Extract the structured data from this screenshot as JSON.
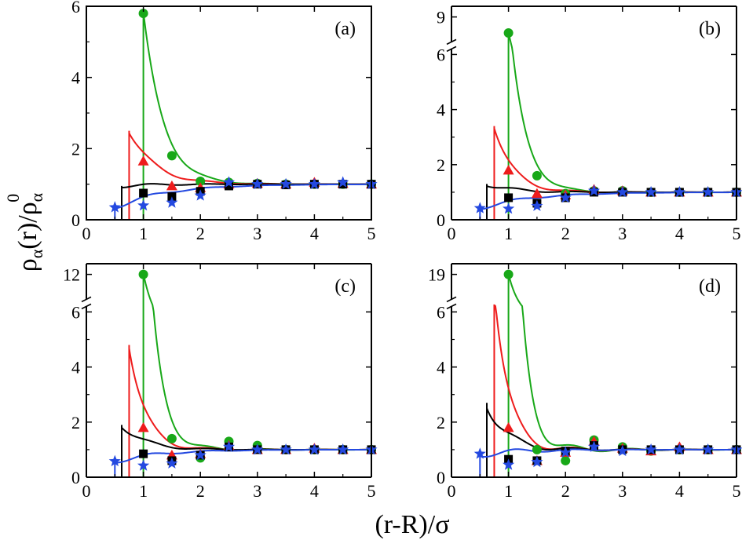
{
  "figure": {
    "ylabel": "ρα(r)/ρα0",
    "ylabel_main": "ρ",
    "ylabel_sub1": "α",
    "ylabel_mid": "(r)/ρ",
    "ylabel_sub2": "α",
    "ylabel_sup": "0",
    "xlabel": "(r-R)/σ"
  },
  "colors": {
    "black": "#000000",
    "red": "#ee1c1c",
    "green": "#18a818",
    "blue": "#2449e0"
  },
  "chart_data": [
    {
      "type": "line",
      "panel_label": "(a)",
      "xlim": [
        0,
        5
      ],
      "x_ticks": [
        "0",
        "1",
        "2",
        "3",
        "4",
        "5"
      ],
      "ylim": [
        0,
        6
      ],
      "y_ticks": [
        "0",
        "2",
        "4",
        "6"
      ],
      "axis_break": null,
      "series": [
        {
          "color": "green",
          "marker": "circle",
          "contact": 1.0,
          "peak": 5.8,
          "decay": 0.35,
          "osc_amp": 0.07,
          "x": [
            1.0,
            1.5,
            2.0,
            2.5,
            3.0,
            3.5,
            4.0,
            4.5,
            5.0
          ],
          "y": [
            5.8,
            1.8,
            1.08,
            1.05,
            1.02,
            1.0,
            1.0,
            1.0,
            1.0
          ]
        },
        {
          "color": "red",
          "marker": "triangle",
          "contact": 0.75,
          "peak": 2.5,
          "decay": 0.45,
          "osc_amp": 0.08,
          "x": [
            1.0,
            1.5,
            2.0,
            2.5,
            3.0,
            3.5,
            4.0,
            4.5,
            5.0
          ],
          "y": [
            1.65,
            0.95,
            0.9,
            1.0,
            1.02,
            1.0,
            1.05,
            1.02,
            1.0
          ]
        },
        {
          "color": "black",
          "marker": "square",
          "contact": 0.62,
          "peak": 0.95,
          "decay": 0.5,
          "osc_amp": 0.05,
          "x": [
            1.0,
            1.5,
            2.0,
            2.5,
            3.0,
            3.5,
            4.0,
            4.5,
            5.0
          ],
          "y": [
            0.75,
            0.65,
            0.8,
            0.95,
            1.0,
            0.98,
            1.0,
            1.0,
            1.0
          ]
        },
        {
          "color": "blue",
          "marker": "star",
          "contact": 0.5,
          "peak": 0.35,
          "decay": 0.9,
          "osc_amp": 0.07,
          "x": [
            0.5,
            1.0,
            1.5,
            2.0,
            2.5,
            3.0,
            3.5,
            4.0,
            4.5,
            5.0
          ],
          "y": [
            0.35,
            0.4,
            0.48,
            0.68,
            1.05,
            1.0,
            1.0,
            1.0,
            1.05,
            1.0
          ]
        }
      ]
    },
    {
      "type": "line",
      "panel_label": "(b)",
      "xlim": [
        0,
        5
      ],
      "x_ticks": [
        "0",
        "1",
        "2",
        "3",
        "4",
        "5"
      ],
      "ylim": [
        0,
        7
      ],
      "y_ticks": [
        "0",
        "2",
        "4",
        "6"
      ],
      "axis_break": {
        "break_at": 6.2,
        "top_tick": "9",
        "top_value": 9
      },
      "series": [
        {
          "color": "green",
          "marker": "circle",
          "contact": 1.0,
          "peak": 7.6,
          "decay": 0.27,
          "osc_amp": 0.1,
          "x": [
            1.0,
            1.5,
            2.0,
            2.5,
            3.0,
            3.5,
            4.0,
            4.5,
            5.0
          ],
          "y": [
            7.6,
            1.6,
            0.95,
            1.05,
            1.05,
            1.0,
            1.0,
            1.0,
            1.0
          ]
        },
        {
          "color": "red",
          "marker": "triangle",
          "contact": 0.75,
          "peak": 3.4,
          "decay": 0.33,
          "osc_amp": 0.1,
          "x": [
            1.0,
            1.5,
            2.0,
            2.5,
            3.0,
            3.5,
            4.0,
            4.5,
            5.0
          ],
          "y": [
            1.8,
            0.95,
            0.9,
            1.1,
            1.05,
            1.0,
            1.0,
            1.0,
            1.0
          ]
        },
        {
          "color": "black",
          "marker": "square",
          "contact": 0.62,
          "peak": 1.3,
          "decay": 0.45,
          "osc_amp": 0.08,
          "x": [
            1.0,
            1.5,
            2.0,
            2.5,
            3.0,
            3.5,
            4.0,
            4.5,
            5.0
          ],
          "y": [
            0.8,
            0.6,
            0.8,
            1.0,
            1.0,
            1.0,
            1.0,
            1.0,
            1.0
          ]
        },
        {
          "color": "blue",
          "marker": "star",
          "contact": 0.5,
          "peak": 0.42,
          "decay": 0.9,
          "osc_amp": 0.08,
          "x": [
            0.5,
            1.0,
            1.5,
            2.0,
            2.5,
            3.0,
            3.5,
            4.0,
            4.5,
            5.0
          ],
          "y": [
            0.42,
            0.4,
            0.5,
            0.8,
            1.05,
            1.0,
            1.0,
            1.0,
            1.0,
            1.0
          ]
        }
      ]
    },
    {
      "type": "line",
      "panel_label": "(c)",
      "xlim": [
        0,
        5
      ],
      "x_ticks": [
        "0",
        "1",
        "2",
        "3",
        "4",
        "5"
      ],
      "ylim": [
        0,
        7
      ],
      "y_ticks": [
        "0",
        "2",
        "4",
        "6"
      ],
      "axis_break": {
        "break_at": 6.2,
        "top_tick": "12",
        "top_value": 12
      },
      "series": [
        {
          "color": "green",
          "marker": "circle",
          "contact": 1.0,
          "peak": 12.0,
          "decay": 0.22,
          "osc_amp": 0.2,
          "x": [
            1.0,
            1.5,
            2.0,
            2.5,
            3.0,
            3.5,
            4.0,
            4.5,
            5.0
          ],
          "y": [
            12.0,
            1.4,
            0.7,
            1.3,
            1.15,
            1.0,
            1.0,
            1.0,
            1.0
          ]
        },
        {
          "color": "red",
          "marker": "triangle",
          "contact": 0.75,
          "peak": 4.8,
          "decay": 0.28,
          "osc_amp": 0.15,
          "x": [
            1.0,
            1.5,
            2.0,
            2.5,
            3.0,
            3.5,
            4.0,
            4.5,
            5.0
          ],
          "y": [
            1.8,
            0.8,
            0.85,
            1.15,
            1.0,
            1.0,
            1.05,
            1.0,
            1.0
          ]
        },
        {
          "color": "black",
          "marker": "square",
          "contact": 0.62,
          "peak": 1.9,
          "decay": 0.4,
          "osc_amp": 0.1,
          "x": [
            1.0,
            1.5,
            2.0,
            2.5,
            3.0,
            3.5,
            4.0,
            4.5,
            5.0
          ],
          "y": [
            0.85,
            0.6,
            0.8,
            1.1,
            1.0,
            1.0,
            1.0,
            1.0,
            1.0
          ]
        },
        {
          "color": "blue",
          "marker": "star",
          "contact": 0.5,
          "peak": 0.58,
          "decay": 0.8,
          "osc_amp": 0.1,
          "x": [
            0.5,
            1.0,
            1.5,
            2.0,
            2.5,
            3.0,
            3.5,
            4.0,
            4.5,
            5.0
          ],
          "y": [
            0.58,
            0.42,
            0.5,
            0.8,
            1.1,
            1.0,
            1.0,
            1.0,
            1.0,
            1.0
          ]
        }
      ]
    },
    {
      "type": "line",
      "panel_label": "(d)",
      "xlim": [
        0,
        5
      ],
      "x_ticks": [
        "0",
        "1",
        "2",
        "3",
        "4",
        "5"
      ],
      "ylim": [
        0,
        7
      ],
      "y_ticks": [
        "0",
        "2",
        "4",
        "6"
      ],
      "axis_break": {
        "break_at": 6.2,
        "top_tick": "19",
        "top_value": 19
      },
      "series": [
        {
          "color": "green",
          "marker": "circle",
          "contact": 1.0,
          "peak": 19.0,
          "decay": 0.19,
          "osc_amp": 0.35,
          "x": [
            1.0,
            1.5,
            2.0,
            2.5,
            3.0,
            3.5,
            4.0,
            4.5,
            5.0
          ],
          "y": [
            19.0,
            1.0,
            0.6,
            1.35,
            1.1,
            0.95,
            1.0,
            1.0,
            1.0
          ]
        },
        {
          "color": "red",
          "marker": "triangle",
          "contact": 0.75,
          "peak": 7.0,
          "decay": 0.24,
          "osc_amp": 0.25,
          "x": [
            1.0,
            1.5,
            2.0,
            2.5,
            3.0,
            3.5,
            4.0,
            4.5,
            5.0
          ],
          "y": [
            1.8,
            0.6,
            0.9,
            1.3,
            1.05,
            0.95,
            1.1,
            1.0,
            1.0
          ]
        },
        {
          "color": "black",
          "marker": "square",
          "contact": 0.62,
          "peak": 2.7,
          "decay": 0.33,
          "osc_amp": 0.2,
          "x": [
            1.0,
            1.5,
            2.0,
            2.5,
            3.0,
            3.5,
            4.0,
            4.5,
            5.0
          ],
          "y": [
            0.65,
            0.6,
            0.95,
            1.15,
            1.0,
            1.0,
            1.0,
            1.0,
            1.0
          ]
        },
        {
          "color": "blue",
          "marker": "star",
          "contact": 0.5,
          "peak": 0.85,
          "decay": 0.7,
          "osc_amp": 0.15,
          "x": [
            0.5,
            1.0,
            1.5,
            2.0,
            2.5,
            3.0,
            3.5,
            4.0,
            4.5,
            5.0
          ],
          "y": [
            0.85,
            0.45,
            0.55,
            0.9,
            1.1,
            0.95,
            1.0,
            1.0,
            1.0,
            1.0
          ]
        }
      ]
    }
  ]
}
